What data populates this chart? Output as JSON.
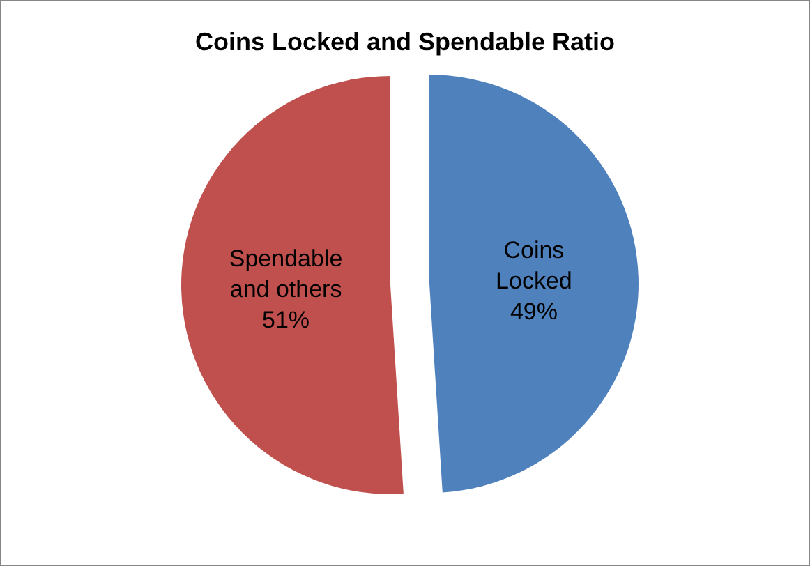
{
  "chart_data": {
    "type": "pie",
    "title": "Coins Locked and Spendable Ratio",
    "categories": [
      "Coins Locked",
      "Spendable and others"
    ],
    "values": [
      49,
      51
    ],
    "colors": [
      "#4f81bd",
      "#c0504d"
    ],
    "value_labels": [
      "49%",
      "51%"
    ]
  }
}
